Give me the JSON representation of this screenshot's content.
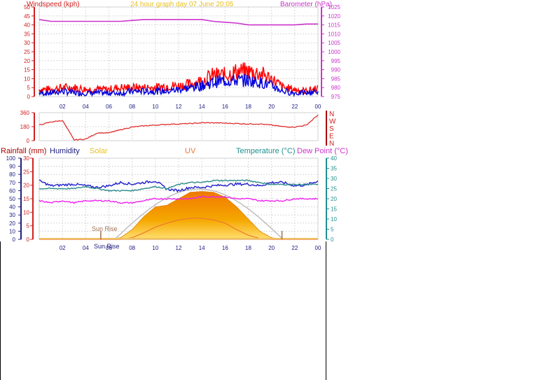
{
  "colors": {
    "wind": "#e00000",
    "gust": "#ff0000",
    "windAvg": "#0000dd",
    "baro": "#cc33cc",
    "dir": "#e03030",
    "humidity": "#2020cc",
    "temp": "#2e8b8b",
    "dew": "#ee22ee",
    "solar": "#f5a000",
    "uv": "#ee7733",
    "rain": "#aa0000",
    "sunrise": "#a07050",
    "title": "#e8c020",
    "grid": "#d8d8d8",
    "axisRed": "#d02020",
    "axisNavy": "#202080",
    "axisTeal": "#209090",
    "axisMagenta": "#cc33cc"
  },
  "header": {
    "left_label": "Windspeed (kph)",
    "title": "24 hour graph day   07 June 20:05",
    "right_label": "Barometer (hPa)"
  },
  "x_ticks": [
    "02",
    "04",
    "06",
    "08",
    "10",
    "12",
    "14",
    "16",
    "18",
    "20",
    "22",
    "00"
  ],
  "x_ticks_bottom": [
    "02",
    "04",
    "06",
    "08",
    "10",
    "12",
    "14",
    "16",
    "18",
    "20",
    "22",
    "00"
  ],
  "wind_ticks": [
    "0",
    "5",
    "10",
    "15",
    "20",
    "25",
    "30",
    "35",
    "40",
    "45",
    "50"
  ],
  "baro_ticks": [
    "975",
    "980",
    "985",
    "990",
    "995",
    "1000",
    "1005",
    "1010",
    "1015",
    "1020",
    "1025"
  ],
  "dir_ticks": [
    "0",
    "180",
    "360"
  ],
  "compass": [
    "N",
    "W",
    "S",
    "E",
    "N"
  ],
  "panel3_labels": {
    "rain": "Rainfall (mm)",
    "humidity": "Humidity",
    "solar": "Solar",
    "uv": "UV",
    "temp": "Temperature (°C)",
    "dew": "Dew Point (°C)"
  },
  "hum_ticks": [
    "0",
    "10",
    "20",
    "30",
    "40",
    "50",
    "60",
    "70",
    "80",
    "90",
    "100"
  ],
  "rain_ticks": [
    "0",
    "5",
    "10",
    "15",
    "20",
    "25",
    "30"
  ],
  "temp_ticks": [
    "0",
    "5",
    "10",
    "15",
    "20",
    "25",
    "30",
    "35",
    "40"
  ],
  "sun_labels": {
    "sunrise_upper": "Sun Rise",
    "sunrise_lower": "Sun Rise"
  },
  "chart_data": [
    {
      "type": "line",
      "title": "24 hour graph day   07 June 20:05",
      "xlabel": "",
      "ylabel": "Windspeed (kph)",
      "y2label": "Barometer (hPa)",
      "x": [
        "00",
        "01",
        "02",
        "03",
        "04",
        "05",
        "06",
        "07",
        "08",
        "09",
        "10",
        "11",
        "12",
        "13",
        "14",
        "15",
        "16",
        "17",
        "18",
        "19",
        "20",
        "21",
        "22",
        "23",
        "00"
      ],
      "ylim": [
        0,
        50
      ],
      "y2lim": [
        975,
        1025
      ],
      "series": [
        {
          "name": "Windspeed (kph)",
          "axis": "left",
          "values": [
            4,
            4,
            5,
            5,
            4,
            4,
            4,
            5,
            5,
            5,
            5,
            6,
            6,
            7,
            9,
            12,
            12,
            14,
            14,
            13,
            10,
            5,
            4,
            3,
            5
          ]
        },
        {
          "name": "",
          "axis": "left",
          "values": [
            2,
            2,
            3,
            2,
            2,
            2,
            2,
            2,
            3,
            3,
            3,
            3,
            4,
            5,
            6,
            8,
            9,
            9,
            9,
            8,
            6,
            3,
            2,
            2,
            3
          ]
        },
        {
          "name": "Barometer (hPa)",
          "axis": "right",
          "values": [
            1018,
            1017,
            1017,
            1017,
            1017,
            1017,
            1017,
            1017,
            1017.5,
            1018,
            1018,
            1018,
            1018,
            1018,
            1018,
            1017,
            1016.5,
            1016,
            1015,
            1015,
            1015,
            1015,
            1015,
            1015.5,
            1015.5
          ]
        }
      ]
    },
    {
      "type": "line",
      "ylabel": "",
      "x": [
        "00",
        "01",
        "02",
        "03",
        "04",
        "05",
        "06",
        "07",
        "08",
        "09",
        "10",
        "11",
        "12",
        "13",
        "14",
        "15",
        "16",
        "17",
        "18",
        "19",
        "20",
        "21",
        "22",
        "23",
        "00"
      ],
      "ylim": [
        0,
        360
      ],
      "series": [
        {
          "name": "",
          "values": [
            200,
            240,
            260,
            10,
            20,
            100,
            100,
            140,
            175,
            190,
            200,
            210,
            215,
            220,
            230,
            230,
            225,
            220,
            215,
            215,
            200,
            180,
            175,
            200,
            330
          ]
        }
      ]
    },
    {
      "type": "area",
      "x": [
        "00",
        "01",
        "02",
        "03",
        "04",
        "05",
        "06",
        "07",
        "08",
        "09",
        "10",
        "11",
        "12",
        "13",
        "14",
        "15",
        "16",
        "17",
        "18",
        "19",
        "20",
        "21",
        "22",
        "23",
        "00"
      ],
      "ylim": [
        0,
        100
      ],
      "y2lim": [
        0,
        40
      ],
      "series": [
        {
          "name": "Humidity",
          "axis": "left",
          "values": [
            72,
            66,
            67,
            68,
            66,
            64,
            66,
            70,
            68,
            70,
            72,
            62,
            60,
            64,
            64,
            66,
            67,
            68,
            68,
            66,
            70,
            70,
            66,
            67,
            72
          ]
        },
        {
          "name": "Temperature (°C)",
          "axis": "right",
          "values": [
            25,
            25,
            25,
            25,
            26,
            25,
            24,
            24,
            24,
            25,
            26,
            25,
            27,
            28,
            28,
            29,
            29,
            29,
            29,
            28,
            27,
            27,
            27,
            27,
            27
          ]
        },
        {
          "name": "Dew Point (°C)",
          "axis": "right",
          "values": [
            19,
            18,
            19,
            18,
            19,
            19,
            19,
            18,
            18,
            19,
            20,
            20,
            20,
            20,
            21,
            21,
            21,
            20,
            20,
            19,
            19,
            19,
            20,
            20,
            20
          ]
        },
        {
          "name": "Solar",
          "axis": "left",
          "values": [
            0,
            0,
            0,
            0,
            0,
            0,
            0,
            2,
            12,
            28,
            40,
            42,
            50,
            58,
            59,
            58,
            52,
            40,
            25,
            10,
            2,
            0,
            0,
            0,
            0
          ]
        },
        {
          "name": "UV",
          "axis": "left",
          "values": [
            0,
            0,
            0,
            0,
            0,
            0,
            0,
            0,
            2,
            8,
            15,
            20,
            24,
            26,
            26,
            24,
            20,
            12,
            5,
            1,
            0,
            0,
            0,
            0,
            0
          ]
        },
        {
          "name": "Rainfall (mm)",
          "axis": "left",
          "values": [
            0,
            0,
            0,
            0,
            0,
            0,
            0,
            0,
            0,
            0,
            0,
            0,
            0,
            0,
            0,
            0,
            0,
            0,
            0,
            0,
            0,
            0,
            0,
            0,
            0
          ]
        }
      ]
    }
  ]
}
